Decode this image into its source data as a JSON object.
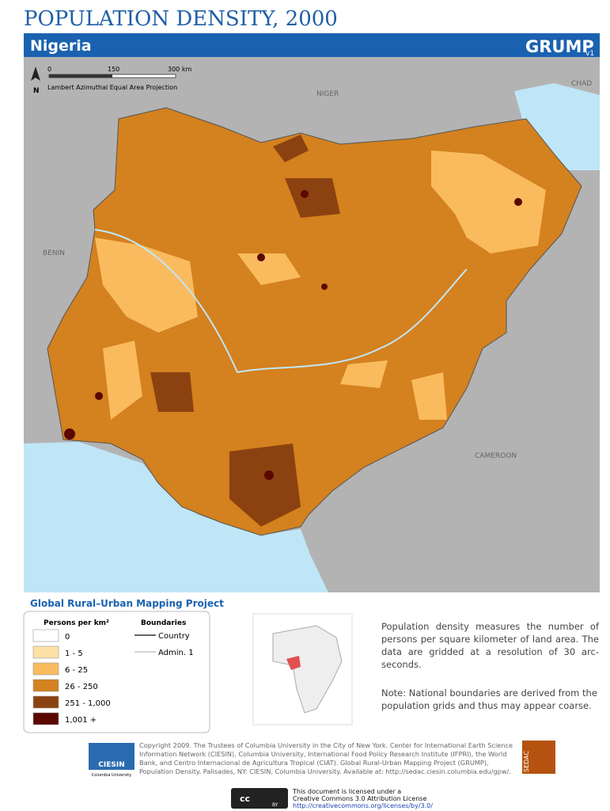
{
  "header": {
    "title": "POPULATION DENSITY, 2000",
    "country": "Nigeria",
    "logo": "GRUMP",
    "logo_version": "v1"
  },
  "map": {
    "north": "N",
    "scale": [
      "0",
      "150",
      "300 km"
    ],
    "projection": "Lambert Azimuthal Equal Area Projection",
    "neighbors": [
      "NIGER",
      "CHAD",
      "BENIN",
      "CAMEROON"
    ]
  },
  "legend": {
    "title": "Global Rural–Urban Mapping Project",
    "units": "Persons per km²",
    "classes": [
      {
        "label": "0",
        "color": "#ffffff"
      },
      {
        "label": "1 - 5",
        "color": "#fde0a6"
      },
      {
        "label": "6 - 25",
        "color": "#f9bb5e"
      },
      {
        "label": "26 - 250",
        "color": "#d4811f"
      },
      {
        "label": "251 - 1,000",
        "color": "#8c4210"
      },
      {
        "label": "1,001 +",
        "color": "#5a0800"
      }
    ],
    "boundaries_title": "Boundaries",
    "boundaries": [
      "Country",
      "Admin. 1"
    ]
  },
  "description": "Population density measures the number of persons per square kilometer of land area. The data are gridded at a resolution of 30 arc-seconds.",
  "note": "Note: National boundaries are derived from the population grids and thus may appear coarse.",
  "footer": {
    "ciesin": "CIESIN",
    "ciesin_sub": "Columbia University",
    "sedac": "SEDAC",
    "copyright": "Copyright 2009. The Trustees of Columbia University in the City of New York. Center for International Earth Science Information Network (CIESIN), Columbia University, International Food Policy Research Institute (IFPRI), the World Bank, and Centro Internacional de Agricultura Tropical (CIAT). Global Rural-Urban Mapping Project (GRUMP), Population Density. Palisades, NY: CIESIN, Columbia University. Available at: http://sedac.ciesin.columbia.edu/gpw/.",
    "license": [
      "This document is licensed under a",
      "Creative Commons 3.0 Attribution License",
      "http://creativecommons.org/licenses/by/3.0/"
    ],
    "cc": "cc",
    "by": "BY"
  }
}
